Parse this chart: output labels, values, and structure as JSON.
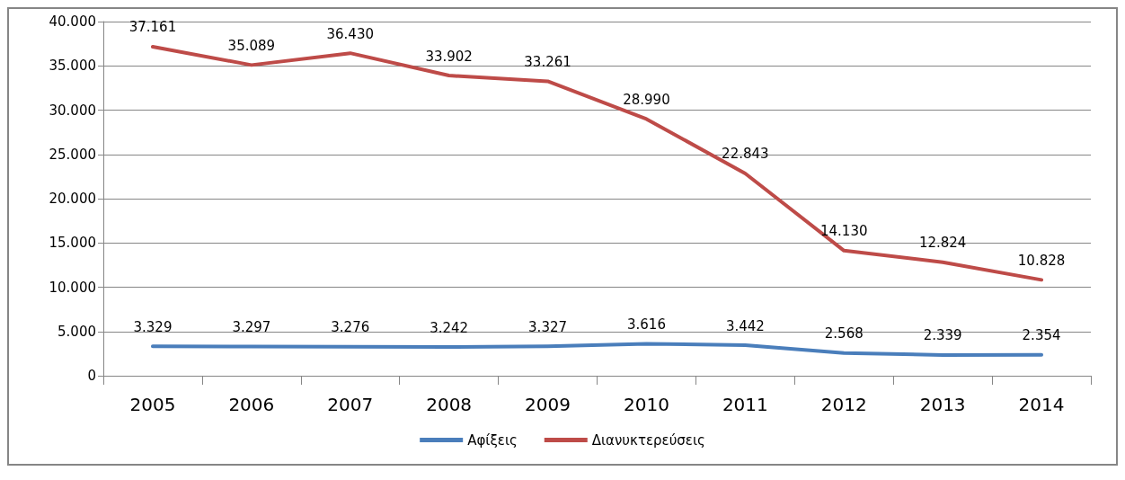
{
  "chart_data": {
    "type": "line",
    "categories": [
      "2005",
      "2006",
      "2007",
      "2008",
      "2009",
      "2010",
      "2011",
      "2012",
      "2013",
      "2014"
    ],
    "series": [
      {
        "name": "Αφίξεις",
        "color": "#4a7ebb",
        "values": [
          3329,
          3297,
          3276,
          3242,
          3327,
          3616,
          3442,
          2568,
          2339,
          2354
        ],
        "value_labels": [
          "3.329",
          "3.297",
          "3.276",
          "3.242",
          "3.327",
          "3.616",
          "3.442",
          "2.568",
          "2.339",
          "2.354"
        ]
      },
      {
        "name": "Διανυκτερεύσεις",
        "color": "#be4b48",
        "values": [
          37161,
          35089,
          36430,
          33902,
          33261,
          28990,
          22843,
          14130,
          12824,
          10828
        ],
        "value_labels": [
          "37.161",
          "35.089",
          "36.430",
          "33.902",
          "33.261",
          "28.990",
          "22.843",
          "14.130",
          "12.824",
          "10.828"
        ]
      }
    ],
    "ylim": [
      0,
      40000
    ],
    "yticks": [
      {
        "value": 0,
        "label": "0"
      },
      {
        "value": 5000,
        "label": "5.000"
      },
      {
        "value": 10000,
        "label": "10.000"
      },
      {
        "value": 15000,
        "label": "15.000"
      },
      {
        "value": 20000,
        "label": "20.000"
      },
      {
        "value": 25000,
        "label": "25.000"
      },
      {
        "value": 30000,
        "label": "30.000"
      },
      {
        "value": 35000,
        "label": "35.000"
      },
      {
        "value": 40000,
        "label": "40.000"
      }
    ],
    "grid": "y",
    "legend": "bottom",
    "marker": "none",
    "line_style": "solid"
  }
}
